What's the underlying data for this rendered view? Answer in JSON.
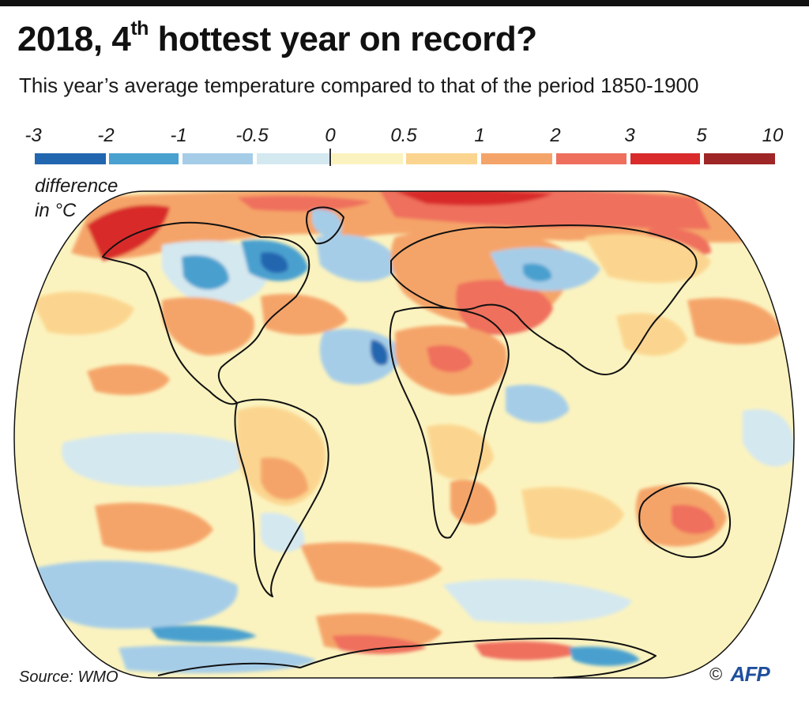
{
  "header": {
    "title_main": "2018, 4",
    "title_sup": "th",
    "title_rest": " hottest year on record?",
    "subtitle": "This year’s average temperature compared to that of the period 1850-1900"
  },
  "legend": {
    "labels": [
      "-3",
      "-2",
      "-1",
      "-0.5",
      "0",
      "0.5",
      "1",
      "2",
      "3",
      "5",
      "10"
    ],
    "colors": [
      "#2266b0",
      "#4aa0cf",
      "#a6cde8",
      "#d4e8f0",
      "#fbf3bf",
      "#fbd58f",
      "#f5a469",
      "#ef6f5d",
      "#d92b2b",
      "#9e2626"
    ],
    "caption_line1": "difference",
    "caption_line2": "in °C"
  },
  "map": {
    "ocean_background_color": "#fbf3bf",
    "region_anomalies": [
      {
        "region": "Arctic / northern Siberia",
        "anomaly_range": "2 to 5"
      },
      {
        "region": "Alaska / Bering Strait",
        "anomaly_range": "3 to 5"
      },
      {
        "region": "Eastern Canada / Hudson Bay",
        "anomaly_range": "-2 to -0.5"
      },
      {
        "region": "Europe and Middle East",
        "anomaly_range": "1 to 3"
      },
      {
        "region": "Central Asia",
        "anomaly_range": "-1 to -0.5"
      },
      {
        "region": "Sahara",
        "anomaly_range": "1 to 2"
      },
      {
        "region": "Australia",
        "anomaly_range": "1 to 2"
      },
      {
        "region": "North Atlantic",
        "anomaly_range": "-1 to 0"
      },
      {
        "region": "Southern Ocean",
        "anomaly_range": "-3 to 0"
      },
      {
        "region": "Antarctic coast",
        "anomaly_range": "1 to 3"
      }
    ]
  },
  "footer": {
    "source": "Source: WMO",
    "copyright": "©",
    "logo_text": "AFP"
  }
}
